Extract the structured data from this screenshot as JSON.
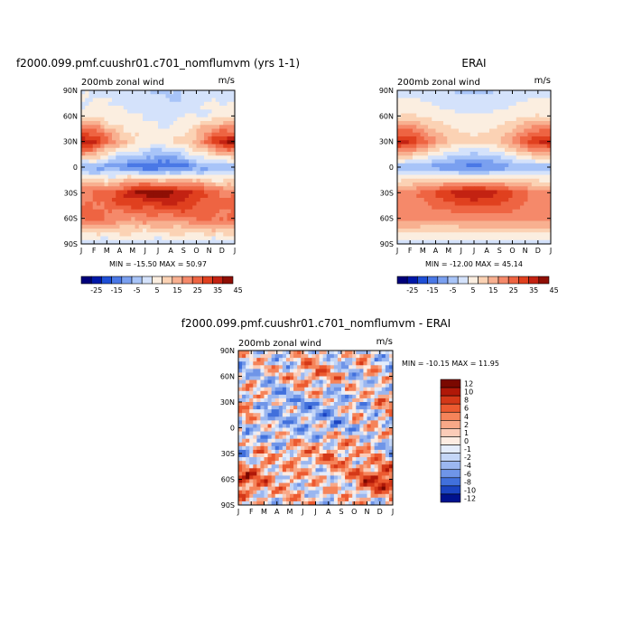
{
  "panels": [
    {
      "title": "f2000.099.pmf.cuushr01.c701_nomflumvm (yrs 1-1)",
      "subtitle": "200mb zonal wind",
      "units": "m/s",
      "stats": "MIN = -15.50  MAX =  50.97",
      "colorbar_labels": [
        "-25",
        "-15",
        "-5",
        "5",
        "15",
        "25",
        "35",
        "45"
      ]
    },
    {
      "title": "ERAI",
      "subtitle": "200mb zonal wind",
      "units": "m/s",
      "stats": "MIN = -12.00  MAX =  45.14",
      "colorbar_labels": [
        "-25",
        "-15",
        "-5",
        "5",
        "15",
        "25",
        "35",
        "45"
      ]
    },
    {
      "title": "f2000.099.pmf.cuushr01.c701_nomflumvm - ERAI",
      "subtitle": "200mb zonal wind",
      "units": "m/s",
      "stats": "MIN = -10.15  MAX =  11.95",
      "colorbar_labels": [
        "12",
        "10",
        "8",
        "6",
        "4",
        "2",
        "1",
        "0",
        "-1",
        "-2",
        "-4",
        "-6",
        "-8",
        "-10",
        "-12"
      ]
    }
  ],
  "x_tick_labels": [
    "J",
    "F",
    "M",
    "A",
    "M",
    "J",
    "J",
    "A",
    "S",
    "O",
    "N",
    "D",
    "J"
  ],
  "y_tick_labels": [
    "90N",
    "60N",
    "30N",
    "0",
    "30S",
    "60S",
    "90S"
  ],
  "chart_data": [
    {
      "type": "heatmap",
      "title": "f2000.099.pmf.cuushr01.c701_nomflumvm (yrs 1-1)",
      "subtitle": "200mb zonal wind",
      "units": "m/s",
      "x": [
        "J",
        "F",
        "M",
        "A",
        "M",
        "J",
        "J",
        "A",
        "S",
        "O",
        "N",
        "D",
        "J"
      ],
      "y": [
        "90N",
        "60N",
        "30N",
        "0",
        "30S",
        "60S",
        "90S"
      ],
      "values": [
        [
          5,
          5,
          5,
          4,
          3,
          2,
          1,
          1,
          2,
          3,
          4,
          5,
          5
        ],
        [
          10,
          12,
          10,
          9,
          8,
          7,
          6,
          6,
          7,
          8,
          9,
          11,
          10
        ],
        [
          45,
          42,
          30,
          20,
          15,
          12,
          11,
          12,
          15,
          22,
          32,
          42,
          45
        ],
        [
          -3,
          -4,
          -6,
          -8,
          -10,
          -13,
          -15,
          -13,
          -10,
          -6,
          -4,
          -3,
          -3
        ],
        [
          28,
          30,
          32,
          38,
          45,
          48,
          50,
          48,
          44,
          38,
          32,
          28,
          28
        ],
        [
          30,
          30,
          28,
          26,
          25,
          25,
          26,
          26,
          27,
          28,
          30,
          30,
          30
        ],
        [
          2,
          2,
          3,
          3,
          3,
          4,
          4,
          4,
          3,
          3,
          3,
          2,
          2
        ]
      ],
      "zlim": [
        -30,
        50
      ],
      "colorbar_labels": [
        "-25",
        "-15",
        "-5",
        "5",
        "15",
        "25",
        "35",
        "45"
      ],
      "min": -15.5,
      "max": 50.97
    },
    {
      "type": "heatmap",
      "title": "ERAI",
      "subtitle": "200mb zonal wind",
      "units": "m/s",
      "x": [
        "J",
        "F",
        "M",
        "A",
        "M",
        "J",
        "J",
        "A",
        "S",
        "O",
        "N",
        "D",
        "J"
      ],
      "y": [
        "90N",
        "60N",
        "30N",
        "0",
        "30S",
        "60S",
        "90S"
      ],
      "values": [
        [
          5,
          5,
          4,
          3,
          2,
          1,
          1,
          1,
          2,
          3,
          4,
          5,
          5
        ],
        [
          12,
          14,
          12,
          10,
          9,
          8,
          8,
          8,
          9,
          10,
          12,
          13,
          12
        ],
        [
          42,
          40,
          32,
          24,
          18,
          15,
          14,
          15,
          18,
          25,
          34,
          40,
          42
        ],
        [
          -2,
          -3,
          -4,
          -6,
          -8,
          -10,
          -12,
          -10,
          -8,
          -5,
          -3,
          -2,
          -2
        ],
        [
          25,
          28,
          30,
          35,
          40,
          43,
          45,
          43,
          40,
          35,
          30,
          26,
          25
        ],
        [
          26,
          26,
          25,
          25,
          24,
          25,
          26,
          26,
          26,
          26,
          26,
          26,
          26
        ],
        [
          3,
          3,
          3,
          3,
          3,
          4,
          4,
          4,
          3,
          3,
          3,
          3,
          3
        ]
      ],
      "zlim": [
        -30,
        50
      ],
      "colorbar_labels": [
        "-25",
        "-15",
        "-5",
        "5",
        "15",
        "25",
        "35",
        "45"
      ],
      "min": -12.0,
      "max": 45.14
    },
    {
      "type": "heatmap",
      "title": "f2000.099.pmf.cuushr01.c701_nomflumvm - ERAI",
      "subtitle": "200mb zonal wind",
      "units": "m/s",
      "x": [
        "J",
        "F",
        "M",
        "A",
        "M",
        "J",
        "J",
        "A",
        "S",
        "O",
        "N",
        "D",
        "J"
      ],
      "y": [
        "90N",
        "60N",
        "30N",
        "0",
        "30S",
        "60S",
        "90S"
      ],
      "values": [
        [
          0,
          -1,
          1,
          0,
          -2,
          1,
          0,
          -1,
          -2,
          0,
          1,
          -1,
          0
        ],
        [
          -4,
          -2,
          -1,
          -1,
          1,
          2,
          4,
          2,
          1,
          -2,
          1,
          0,
          -4
        ],
        [
          3,
          2,
          -2,
          -4,
          -3,
          -3,
          -3,
          -3,
          -3,
          1,
          -2,
          2,
          3
        ],
        [
          -1,
          -1,
          -2,
          -2,
          -2,
          -3,
          -3,
          -3,
          -3,
          -1,
          -1,
          -1,
          -1
        ],
        [
          -3,
          -2,
          2,
          -1,
          2,
          3,
          2,
          3,
          3,
          2,
          1,
          0,
          -3
        ],
        [
          8,
          6,
          3,
          1,
          1,
          0,
          0,
          0,
          1,
          2,
          6,
          8,
          8
        ],
        [
          -1,
          -1,
          0,
          0,
          0,
          0,
          0,
          0,
          0,
          0,
          0,
          -1,
          -1
        ]
      ],
      "zlim": [
        -12,
        12
      ],
      "colorbar_labels": [
        "12",
        "10",
        "8",
        "6",
        "4",
        "2",
        "1",
        "0",
        "-1",
        "-2",
        "-4",
        "-6",
        "-8",
        "-10",
        "-12"
      ],
      "min": -10.15,
      "max": 11.95
    }
  ],
  "colors": {
    "full_palette": [
      "#00007a",
      "#0018a8",
      "#1f4fd6",
      "#4a78e6",
      "#7aa0f0",
      "#a8c4f8",
      "#d4e2fb",
      "#fbeee0",
      "#fbd2b4",
      "#f8b090",
      "#f5896a",
      "#ee6442",
      "#e0401f",
      "#c32212",
      "#8f0f05"
    ],
    "diff_palette": [
      "#7a0800",
      "#b01808",
      "#d43818",
      "#ec5a30",
      "#f5845a",
      "#f8a888",
      "#fbccb8",
      "#fdece2",
      "#e4ecfb",
      "#c4d6f7",
      "#9bb7f0",
      "#6f95e8",
      "#4170dc",
      "#1b44c2",
      "#00128e"
    ]
  }
}
